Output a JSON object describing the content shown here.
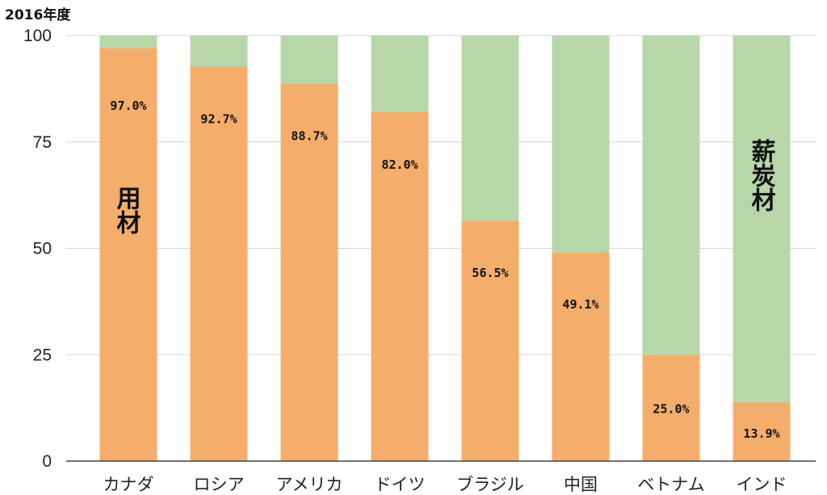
{
  "chart_data": {
    "type": "bar",
    "stacked": true,
    "unit_label": "2016年度",
    "categories": [
      "カナダ",
      "ロシア",
      "アメリカ",
      "ドイツ",
      "ブラジル",
      "中国",
      "ベトナム",
      "インド"
    ],
    "series": [
      {
        "name": "用材",
        "color": "#f5ad6b",
        "values": [
          97.0,
          92.7,
          88.7,
          82.0,
          56.5,
          49.1,
          25.0,
          13.9
        ]
      },
      {
        "name": "薪炭材",
        "color": "#b7d7a8",
        "values": [
          3.0,
          7.3,
          11.3,
          18.0,
          43.5,
          50.9,
          75.0,
          86.1
        ]
      }
    ],
    "data_labels": [
      "97.0%",
      "92.7%",
      "88.7%",
      "82.0%",
      "56.5%",
      "49.1%",
      "25.0%",
      "13.9%"
    ],
    "yticks": [
      0,
      25,
      50,
      75,
      100
    ],
    "ylim": [
      0,
      100
    ],
    "grid": true,
    "legend": "inline"
  }
}
